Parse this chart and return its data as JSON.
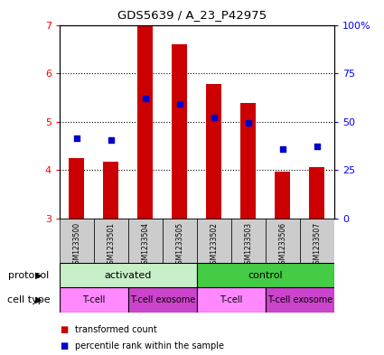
{
  "title": "GDS5639 / A_23_P42975",
  "samples": [
    "GSM1233500",
    "GSM1233501",
    "GSM1233504",
    "GSM1233505",
    "GSM1233502",
    "GSM1233503",
    "GSM1233506",
    "GSM1233507"
  ],
  "transformed_counts": [
    4.25,
    4.18,
    7.0,
    6.6,
    5.78,
    5.38,
    3.97,
    4.05
  ],
  "percentile_ranks": [
    4.65,
    4.62,
    5.48,
    5.36,
    5.08,
    4.98,
    4.43,
    4.48
  ],
  "ylim": [
    3,
    7
  ],
  "yticks_left": [
    3,
    4,
    5,
    6,
    7
  ],
  "yticks_right_vals": [
    3,
    4,
    5,
    6,
    7
  ],
  "yticks_right_labels": [
    "0",
    "25",
    "50",
    "75",
    "100%"
  ],
  "bar_color": "#cc0000",
  "dot_color": "#0000cc",
  "bar_bottom": 3.0,
  "protocol_groups": [
    {
      "label": "activated",
      "start": 0,
      "end": 4,
      "color": "#c8f0c8"
    },
    {
      "label": "control",
      "start": 4,
      "end": 8,
      "color": "#44cc44"
    }
  ],
  "cell_type_groups": [
    {
      "label": "T-cell",
      "start": 0,
      "end": 2,
      "color": "#ff88ff"
    },
    {
      "label": "T-cell exosome",
      "start": 2,
      "end": 4,
      "color": "#cc44cc"
    },
    {
      "label": "T-cell",
      "start": 4,
      "end": 6,
      "color": "#ff88ff"
    },
    {
      "label": "T-cell exosome",
      "start": 6,
      "end": 8,
      "color": "#cc44cc"
    }
  ],
  "legend_items": [
    {
      "label": "transformed count",
      "color": "#cc0000"
    },
    {
      "label": "percentile rank within the sample",
      "color": "#0000cc"
    }
  ],
  "label_left": "protocol",
  "label_left2": "cell type",
  "sample_bg": "#cccccc"
}
